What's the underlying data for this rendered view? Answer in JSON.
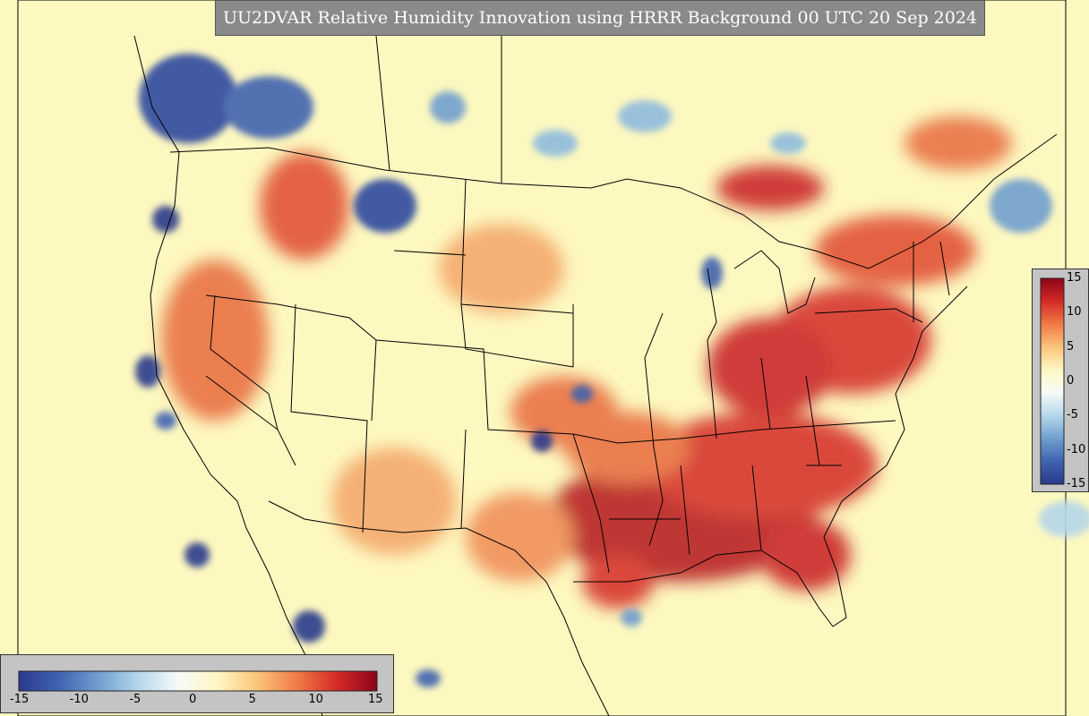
{
  "title": "UU2DVAR Relative Humidity Innovation using HRRR Background 00 UTC 20 Sep 2024",
  "colorbar": {
    "min": -15,
    "max": 15,
    "ticks": [
      "-15",
      "-10",
      "-5",
      "0",
      "5",
      "10",
      "15"
    ],
    "colors": [
      "#2a3a8c",
      "#3f63b0",
      "#6f9fcf",
      "#b5d7ea",
      "#f6fbf8",
      "#fef7c3",
      "#fbc47a",
      "#f07a47",
      "#d42a26",
      "#8c0418"
    ]
  },
  "map": {
    "background_color": "#fdf8c0",
    "border_color": "#000000"
  }
}
